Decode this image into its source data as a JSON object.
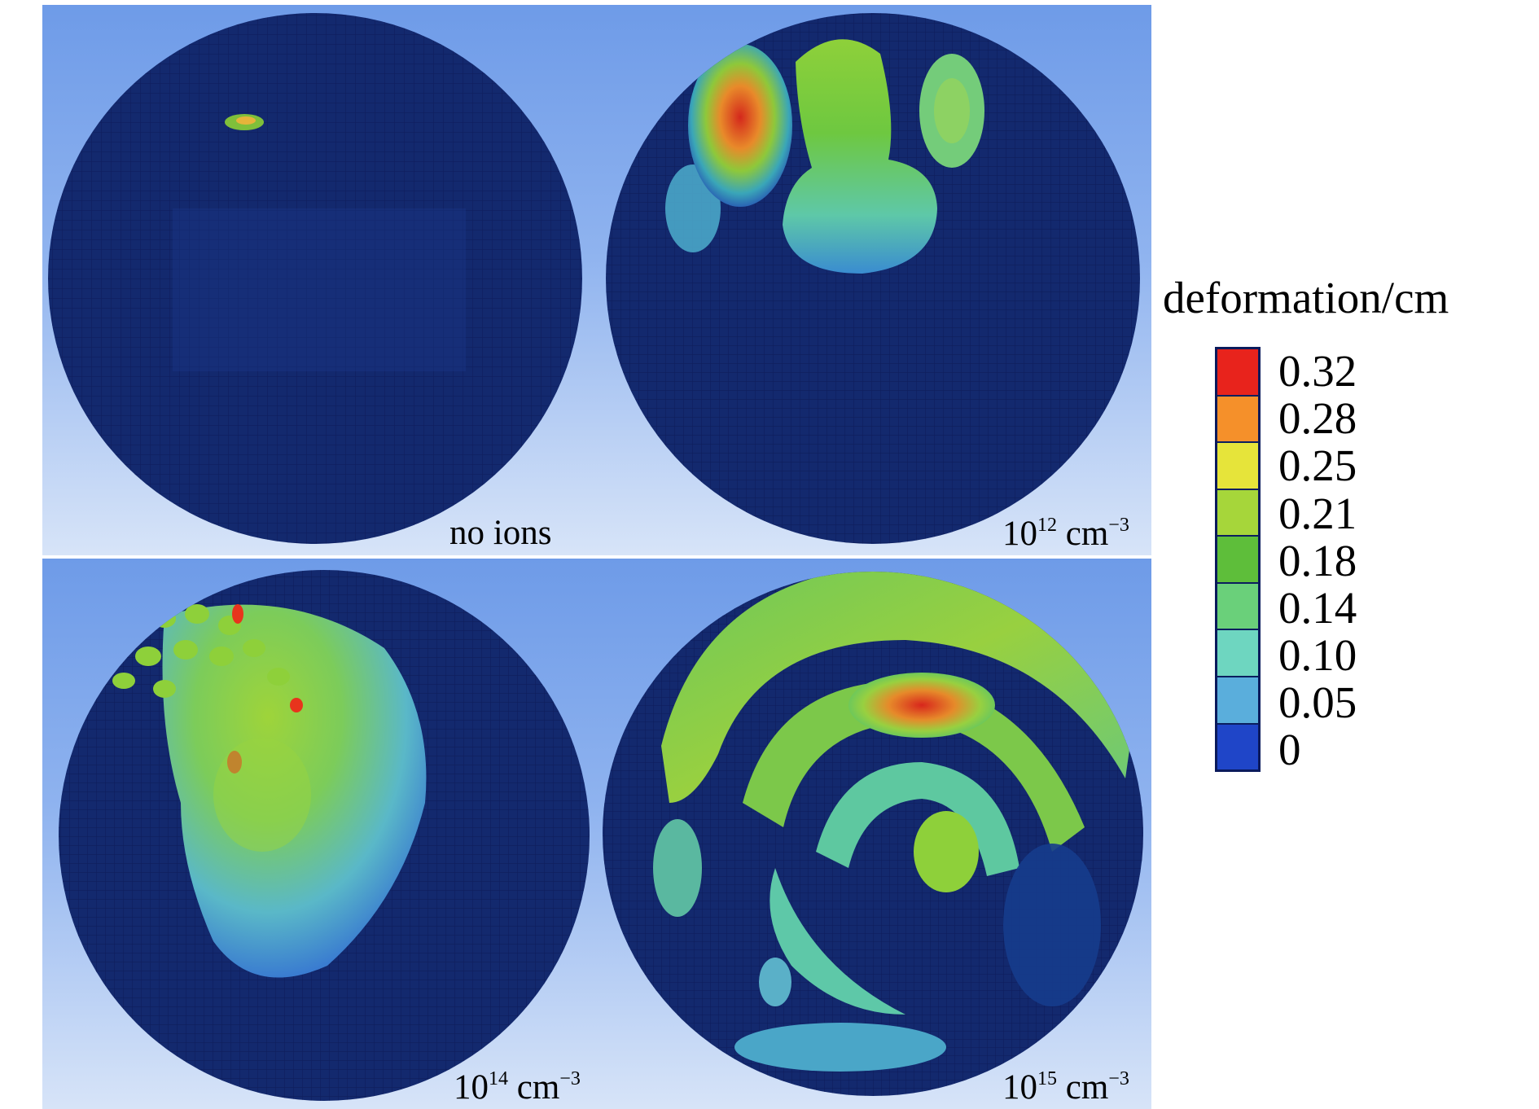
{
  "panels": [
    {
      "label_base": "no ions",
      "label_exp": "",
      "label_unit": ""
    },
    {
      "label_base": "10",
      "label_exp": "12",
      "label_unit": " cm",
      "unit_exp": "−3"
    },
    {
      "label_base": "10",
      "label_exp": "14",
      "label_unit": " cm",
      "unit_exp": "−3"
    },
    {
      "label_base": "10",
      "label_exp": "15",
      "label_unit": " cm",
      "unit_exp": "−3"
    }
  ],
  "legend": {
    "title": "deformation/cm",
    "ticks": [
      "0.32",
      "0.28",
      "0.25",
      "0.21",
      "0.18",
      "0.14",
      "0.10",
      "0.05",
      "0"
    ],
    "colors": [
      "#e8231c",
      "#f5902a",
      "#e6e43a",
      "#a6d63a",
      "#5ebe3a",
      "#6ad07a",
      "#6ed6c0",
      "#5aaedc",
      "#1f45c8"
    ]
  }
}
